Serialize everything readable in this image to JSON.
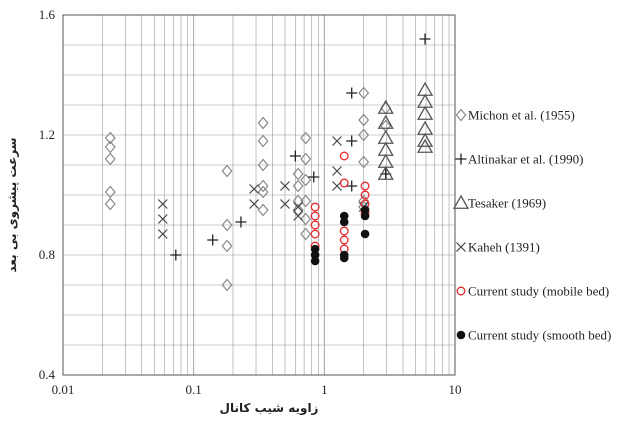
{
  "chart_data": {
    "type": "scatter",
    "title": "",
    "xlabel": "زاویه شیب کانال",
    "ylabel": "سرعت پیشروی بی بعد",
    "x_scale": "log",
    "xlim": [
      0.01,
      10
    ],
    "ylim": [
      0.4,
      1.6
    ],
    "x_ticks": [
      0.01,
      0.1,
      1,
      10
    ],
    "x_tick_labels": [
      "0.01",
      "0.1",
      "1",
      "10"
    ],
    "y_ticks": [
      0.4,
      0.8,
      1.2,
      1.6
    ],
    "y_tick_labels": [
      "0.4",
      "0.8",
      "1.2",
      "1.6"
    ],
    "grid": true,
    "legend_position": "right",
    "series": [
      {
        "name": "Michon et al. (1955)",
        "marker": "diamond",
        "color": "#888888",
        "points": [
          [
            0.023,
            1.19
          ],
          [
            0.023,
            1.16
          ],
          [
            0.023,
            1.12
          ],
          [
            0.023,
            1.01
          ],
          [
            0.023,
            0.97
          ],
          [
            0.18,
            1.08
          ],
          [
            0.18,
            0.9
          ],
          [
            0.18,
            0.83
          ],
          [
            0.18,
            0.7
          ],
          [
            0.34,
            1.24
          ],
          [
            0.34,
            1.18
          ],
          [
            0.34,
            1.1
          ],
          [
            0.34,
            1.03
          ],
          [
            0.34,
            1.01
          ],
          [
            0.34,
            0.95
          ],
          [
            0.63,
            1.07
          ],
          [
            0.63,
            1.03
          ],
          [
            0.63,
            0.98
          ],
          [
            0.63,
            0.95
          ],
          [
            0.72,
            1.19
          ],
          [
            0.72,
            1.12
          ],
          [
            0.72,
            1.05
          ],
          [
            0.72,
            0.98
          ],
          [
            0.72,
            0.92
          ],
          [
            0.72,
            0.87
          ],
          [
            2.0,
            1.34
          ],
          [
            2.0,
            1.25
          ],
          [
            2.0,
            1.2
          ],
          [
            2.0,
            1.11
          ],
          [
            2.0,
            0.98
          ],
          [
            2.0,
            0.96
          ],
          [
            2.95,
            1.29
          ],
          [
            2.95,
            1.23
          ]
        ]
      },
      {
        "name": "Altinakar et al. (1990)",
        "marker": "plus",
        "color": "#222222",
        "points": [
          [
            0.073,
            0.8
          ],
          [
            0.14,
            0.85
          ],
          [
            0.23,
            0.91
          ],
          [
            0.6,
            1.13
          ],
          [
            0.83,
            1.06
          ],
          [
            1.62,
            1.34
          ],
          [
            1.62,
            1.18
          ],
          [
            1.62,
            1.03
          ],
          [
            2.95,
            1.07
          ],
          [
            5.9,
            1.52
          ]
        ]
      },
      {
        "name": "Tesaker (1969)",
        "marker": "triangle",
        "color": "#555555",
        "points": [
          [
            2.95,
            1.29
          ],
          [
            2.95,
            1.24
          ],
          [
            2.95,
            1.19
          ],
          [
            2.95,
            1.15
          ],
          [
            2.95,
            1.11
          ],
          [
            2.95,
            1.07
          ],
          [
            5.9,
            1.35
          ],
          [
            5.9,
            1.31
          ],
          [
            5.9,
            1.27
          ],
          [
            5.9,
            1.22
          ],
          [
            5.9,
            1.18
          ],
          [
            5.9,
            1.16
          ]
        ]
      },
      {
        "name": "Kaheh (1391)",
        "marker": "x",
        "color": "#444444",
        "points": [
          [
            0.058,
            0.97
          ],
          [
            0.058,
            0.92
          ],
          [
            0.058,
            0.87
          ],
          [
            0.29,
            1.02
          ],
          [
            0.29,
            0.97
          ],
          [
            0.5,
            1.03
          ],
          [
            0.5,
            0.97
          ],
          [
            0.63,
            0.96
          ],
          [
            0.63,
            0.93
          ],
          [
            1.25,
            1.18
          ],
          [
            1.25,
            1.08
          ],
          [
            1.25,
            1.03
          ],
          [
            2.0,
            0.96
          ]
        ]
      },
      {
        "name": "Current study (mobile bed)",
        "marker": "open-circle",
        "color": "#e8282c",
        "points": [
          [
            0.85,
            0.96
          ],
          [
            0.85,
            0.93
          ],
          [
            0.85,
            0.9
          ],
          [
            0.85,
            0.87
          ],
          [
            0.85,
            0.83
          ],
          [
            1.42,
            1.13
          ],
          [
            1.42,
            1.04
          ],
          [
            1.42,
            0.88
          ],
          [
            1.42,
            0.85
          ],
          [
            1.42,
            0.82
          ],
          [
            2.05,
            1.03
          ],
          [
            2.05,
            1.0
          ],
          [
            2.05,
            0.97
          ],
          [
            2.05,
            0.94
          ]
        ]
      },
      {
        "name": "Current study (smooth bed)",
        "marker": "filled-circle",
        "color": "#111111",
        "points": [
          [
            0.85,
            0.82
          ],
          [
            0.85,
            0.8
          ],
          [
            0.85,
            0.78
          ],
          [
            1.42,
            0.93
          ],
          [
            1.42,
            0.91
          ],
          [
            1.42,
            0.8
          ],
          [
            1.42,
            0.79
          ],
          [
            2.05,
            0.95
          ],
          [
            2.05,
            0.93
          ],
          [
            2.05,
            0.87
          ]
        ]
      }
    ]
  }
}
